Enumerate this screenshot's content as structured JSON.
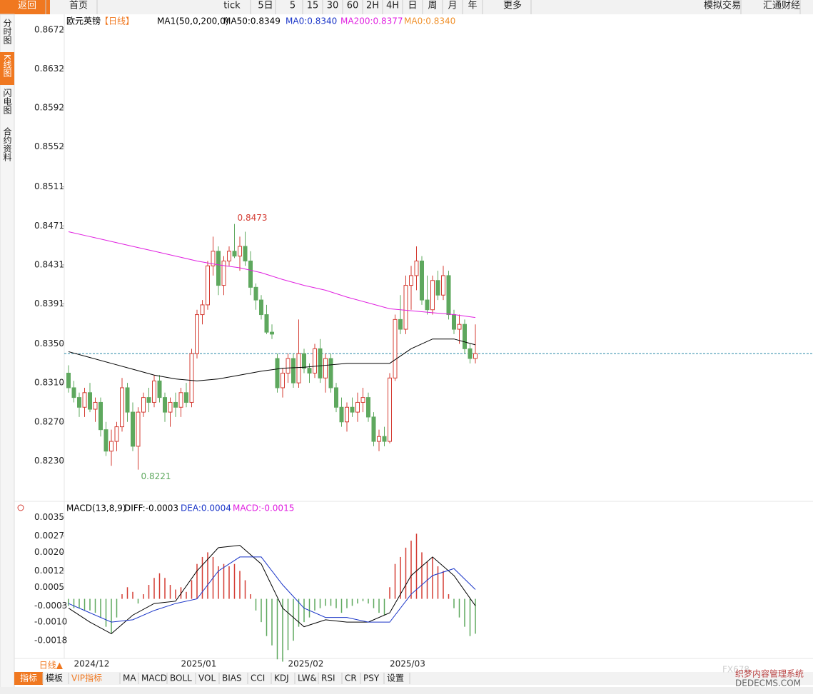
{
  "toolbar": {
    "items": [
      "返回",
      "首页",
      "tick",
      "5日",
      "5",
      "15",
      "30",
      "60",
      "2H",
      "4H",
      "日",
      "周",
      "月",
      "年",
      "更多",
      "模拟交易",
      "汇通财经"
    ]
  },
  "sidebar": {
    "items": [
      "分时图",
      "K线图",
      "闪电图",
      "合约资料"
    ]
  },
  "bottom_bar": {
    "period": "日线▲",
    "tabs": [
      "指标",
      "模板",
      "VIP指标",
      "MA",
      "MACD",
      "BOLL",
      "VOL",
      "BIAS",
      "CCI",
      "KDJ",
      "LW&",
      "RSI",
      "CR",
      "PSY",
      "设置"
    ]
  },
  "watermark": {
    "logo": "FX678",
    "line1": "织梦内容管理系统",
    "line2": "DEDECMS.COM"
  },
  "chart_data": [
    {
      "type": "candlestick",
      "title": "欧元英镑",
      "period": "【日线】",
      "indicator": "MA1(50,0,200,0)",
      "up_color": "#d43c33",
      "down_color": "#5ea85e",
      "categories": [
        null,
        "2024/12",
        null,
        null,
        null,
        null,
        null,
        null,
        null,
        null,
        null,
        null,
        null,
        null,
        null,
        null,
        null,
        null,
        null,
        null,
        null,
        "2025/01",
        null,
        null,
        null,
        null,
        null,
        null,
        null,
        null,
        null,
        null,
        null,
        null,
        null,
        null,
        null,
        null,
        null,
        null,
        null,
        "2025/02",
        null,
        null,
        null,
        null,
        null,
        null,
        null,
        null,
        null,
        null,
        null,
        null,
        null,
        null,
        null,
        null,
        null,
        null,
        "2025/03",
        null,
        null,
        null,
        null,
        null,
        null,
        null,
        null,
        null,
        null,
        null,
        null,
        null,
        null,
        null,
        null
      ],
      "open": [
        0.832,
        0.8305,
        0.8295,
        0.8285,
        0.83,
        0.8283,
        0.829,
        0.8262,
        0.824,
        0.825,
        0.8265,
        0.8305,
        0.828,
        0.8245,
        0.828,
        0.8295,
        0.829,
        0.8312,
        0.8295,
        0.828,
        0.829,
        0.8285,
        0.83,
        0.829,
        0.834,
        0.838,
        0.839,
        0.843,
        0.8445,
        0.841,
        0.8435,
        0.8445,
        0.844,
        0.845,
        0.8435,
        0.8408,
        0.8395,
        0.838,
        0.8362,
        0.8335,
        0.8305,
        0.832,
        0.8335,
        0.831,
        0.834,
        0.8325,
        0.832,
        0.8345,
        0.8315,
        0.8335,
        0.8305,
        0.8285,
        0.827,
        0.8285,
        0.828,
        0.829,
        0.8295,
        0.8275,
        0.825,
        0.8255,
        0.825,
        0.8315,
        0.8375,
        0.8365,
        0.841,
        0.842,
        0.8435,
        0.8395,
        0.8385,
        0.8415,
        0.84,
        0.842,
        0.838,
        0.8365,
        0.837,
        0.8345,
        0.8335
      ],
      "high": [
        0.8328,
        0.8312,
        0.83,
        0.8305,
        0.831,
        0.8295,
        0.8295,
        0.827,
        0.8262,
        0.827,
        0.8315,
        0.831,
        0.829,
        0.8285,
        0.83,
        0.8305,
        0.8318,
        0.8318,
        0.83,
        0.8295,
        0.83,
        0.8305,
        0.831,
        0.8345,
        0.8385,
        0.8395,
        0.8435,
        0.846,
        0.845,
        0.844,
        0.845,
        0.8473,
        0.846,
        0.8465,
        0.8445,
        0.8412,
        0.84,
        0.839,
        0.837,
        0.834,
        0.8325,
        0.834,
        0.834,
        0.8375,
        0.8345,
        0.833,
        0.835,
        0.8355,
        0.834,
        0.834,
        0.831,
        0.8295,
        0.829,
        0.8295,
        0.83,
        0.8305,
        0.83,
        0.828,
        0.8262,
        0.8265,
        0.832,
        0.838,
        0.84,
        0.842,
        0.843,
        0.845,
        0.844,
        0.842,
        0.842,
        0.8425,
        0.843,
        0.8425,
        0.8385,
        0.838,
        0.8375,
        0.835,
        0.837
      ],
      "low": [
        0.83,
        0.829,
        0.8275,
        0.8275,
        0.828,
        0.827,
        0.8255,
        0.8235,
        0.8225,
        0.824,
        0.826,
        0.827,
        0.824,
        0.8221,
        0.8275,
        0.828,
        0.8285,
        0.829,
        0.827,
        0.8265,
        0.8275,
        0.8275,
        0.8285,
        0.8285,
        0.8335,
        0.837,
        0.8385,
        0.842,
        0.84,
        0.84,
        0.843,
        0.8438,
        0.8425,
        0.843,
        0.84,
        0.8385,
        0.8375,
        0.836,
        0.8355,
        0.83,
        0.8295,
        0.831,
        0.8305,
        0.8305,
        0.832,
        0.831,
        0.8315,
        0.831,
        0.83,
        0.83,
        0.828,
        0.8265,
        0.826,
        0.8275,
        0.827,
        0.828,
        0.827,
        0.8245,
        0.824,
        0.8245,
        0.8248,
        0.8312,
        0.836,
        0.836,
        0.8385,
        0.8405,
        0.839,
        0.838,
        0.838,
        0.8395,
        0.8395,
        0.8375,
        0.836,
        0.835,
        0.834,
        0.833,
        0.833
      ],
      "close": [
        0.8305,
        0.8295,
        0.8285,
        0.83,
        0.8283,
        0.829,
        0.8262,
        0.824,
        0.825,
        0.8265,
        0.8305,
        0.828,
        0.8245,
        0.828,
        0.8295,
        0.829,
        0.8312,
        0.8295,
        0.828,
        0.829,
        0.8285,
        0.83,
        0.829,
        0.834,
        0.838,
        0.839,
        0.843,
        0.8445,
        0.841,
        0.8435,
        0.8445,
        0.844,
        0.845,
        0.8435,
        0.8408,
        0.8395,
        0.838,
        0.8362,
        0.836,
        0.8305,
        0.832,
        0.8335,
        0.831,
        0.834,
        0.8325,
        0.832,
        0.8345,
        0.8315,
        0.8335,
        0.8305,
        0.8285,
        0.827,
        0.8285,
        0.828,
        0.829,
        0.8295,
        0.8275,
        0.825,
        0.8255,
        0.825,
        0.8315,
        0.8375,
        0.8365,
        0.841,
        0.842,
        0.8435,
        0.8395,
        0.8385,
        0.8415,
        0.84,
        0.842,
        0.838,
        0.8365,
        0.837,
        0.8345,
        0.8335,
        0.834
      ],
      "series": [
        {
          "label": "MA50:0.8349",
          "color": "#000000",
          "x": [
            0,
            4,
            8,
            12,
            16,
            20,
            24,
            28,
            32,
            36,
            40,
            44,
            48,
            52,
            56,
            60,
            64,
            68,
            72,
            76
          ],
          "values": [
            0.8342,
            0.8336,
            0.833,
            0.8324,
            0.8318,
            0.8314,
            0.8312,
            0.8314,
            0.8318,
            0.8322,
            0.8325,
            0.8326,
            0.8328,
            0.833,
            0.833,
            0.833,
            0.8345,
            0.8355,
            0.8355,
            0.8349
          ]
        },
        {
          "label": "MA200:0.8377",
          "color": "#e020e0",
          "x": [
            0,
            4,
            8,
            12,
            16,
            20,
            24,
            28,
            32,
            36,
            40,
            44,
            48,
            52,
            56,
            60,
            64,
            68,
            72,
            76
          ],
          "values": [
            0.8465,
            0.846,
            0.8455,
            0.845,
            0.8445,
            0.844,
            0.8435,
            0.8431,
            0.8428,
            0.8423,
            0.8416,
            0.841,
            0.8405,
            0.8398,
            0.8392,
            0.8386,
            0.8384,
            0.8382,
            0.838,
            0.8377
          ]
        }
      ],
      "legend_extra": [
        {
          "label": "MA0:0.8340",
          "color": "#1a35c8"
        },
        {
          "label": "MA0:0.8340",
          "color": "#f0902a"
        }
      ],
      "last_price": 0.834,
      "high_label": 0.8473,
      "low_label": 0.8221,
      "ylim": [
        0.819,
        0.8677
      ],
      "yticks": [
        0.8672,
        0.8632,
        0.8592,
        0.8552,
        0.8511,
        0.8471,
        0.8431,
        0.8391,
        {
          "value": 0.835,
          "label": "0.8350"
        },
        {
          "value": 0.831,
          "label": "0.8310"
        },
        {
          "value": 0.827,
          "label": "0.8270"
        },
        {
          "value": 0.823,
          "label": "0.8230"
        }
      ]
    },
    {
      "type": "macd",
      "title": "MACD(13,8,9)",
      "up_color": "#d43c33",
      "down_color": "#5ea85e",
      "histogram": {
        "label": "MACD:-0.0015",
        "color": "#e020e0",
        "values": [
          -0.0003,
          -0.0004,
          -0.0004,
          -0.0005,
          -0.0005,
          -0.0006,
          -0.0008,
          -0.0012,
          -0.0015,
          -0.0008,
          0.0002,
          0.0005,
          0.0003,
          -0.0002,
          0.0002,
          0.0006,
          0.0009,
          0.0011,
          0.0009,
          0.0006,
          0.0004,
          0.0005,
          0.0003,
          0.0008,
          0.0015,
          0.0018,
          0.002,
          0.0018,
          0.0014,
          0.0015,
          0.0014,
          0.0015,
          0.0012,
          0.0008,
          0.0002,
          -0.0005,
          -0.001,
          -0.0016,
          -0.002,
          -0.0026,
          -0.0027,
          -0.0022,
          -0.0018,
          -0.0012,
          -0.001,
          -0.0008,
          -0.0005,
          -0.0004,
          -0.0003,
          -0.0003,
          -0.0004,
          -0.0006,
          -0.0004,
          -0.0003,
          -0.0002,
          -0.0001,
          -0.0002,
          -0.0004,
          -0.0006,
          -0.0007,
          0.0005,
          0.0015,
          0.0018,
          0.0022,
          0.0025,
          0.0028,
          0.002,
          0.0016,
          0.0018,
          0.0014,
          0.0012,
          0.0002,
          -0.0004,
          -0.0008,
          -0.0012,
          -0.0016,
          -0.0015
        ]
      },
      "series": [
        {
          "label": "DIFF:-0.0003",
          "color": "#000000",
          "x": [
            0,
            4,
            8,
            12,
            16,
            20,
            24,
            28,
            32,
            36,
            40,
            44,
            48,
            52,
            56,
            60,
            64,
            68,
            72,
            76
          ],
          "values": [
            -0.0004,
            -0.001,
            -0.0015,
            -0.0007,
            -0.0002,
            -0.0001,
            0.0012,
            0.0022,
            0.0023,
            0.0015,
            -0.0004,
            -0.0012,
            -0.0009,
            -0.001,
            -0.001,
            -0.0006,
            0.001,
            0.0018,
            0.001,
            -0.0003
          ]
        },
        {
          "label": "DEA:0.0004",
          "color": "#1a35c8",
          "x": [
            0,
            4,
            8,
            12,
            16,
            20,
            24,
            28,
            32,
            36,
            40,
            44,
            48,
            52,
            56,
            60,
            64,
            68,
            72,
            76
          ],
          "values": [
            -0.0002,
            -0.0006,
            -0.001,
            -0.0009,
            -0.0005,
            -0.0002,
            0.0,
            0.0012,
            0.0018,
            0.0018,
            0.0006,
            -0.0004,
            -0.0008,
            -0.0008,
            -0.001,
            -0.001,
            0.0002,
            0.001,
            0.0013,
            0.0004
          ]
        }
      ],
      "ylim": [
        -0.0025,
        0.0041
      ],
      "yticks": [
        0.0035,
        0.0027,
        {
          "value": 0.002,
          "label": "0.0020"
        },
        0.0012,
        0.0005,
        -0.0003,
        {
          "value": -0.001,
          "label": "-0.0010"
        },
        -0.0018
      ]
    }
  ]
}
